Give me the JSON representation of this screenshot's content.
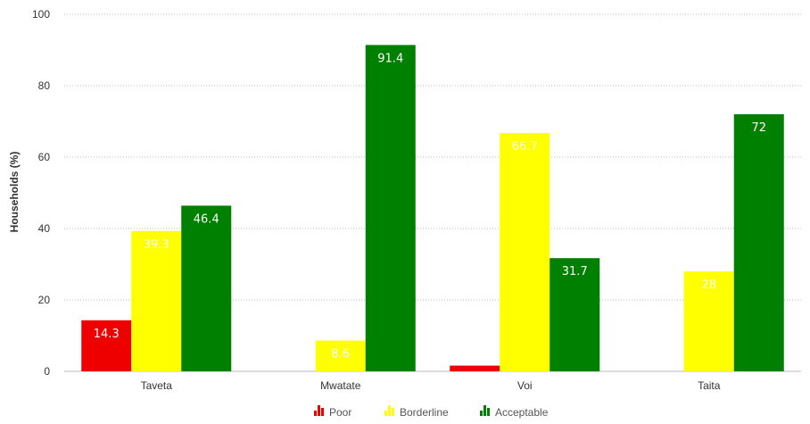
{
  "chart_data": {
    "type": "bar",
    "title": "",
    "xlabel": "",
    "ylabel": "Households (%)",
    "ylim": [
      0,
      100
    ],
    "yticks": [
      0,
      20,
      40,
      60,
      80,
      100
    ],
    "grid": true,
    "legend_position": "bottom",
    "categories": [
      "Taveta",
      "Mwatate",
      "Voi",
      "Taita"
    ],
    "series": [
      {
        "name": "Poor",
        "color": "#ee0000",
        "values": [
          14.3,
          0,
          1.6,
          0
        ],
        "labels": [
          "14.3",
          "",
          "",
          ""
        ]
      },
      {
        "name": "Borderline",
        "color": "#ffff00",
        "values": [
          39.3,
          8.6,
          66.7,
          28
        ],
        "labels": [
          "39.3",
          "8.6",
          "66.7",
          "28"
        ]
      },
      {
        "name": "Acceptable",
        "color": "#008000",
        "values": [
          46.4,
          91.4,
          31.7,
          72
        ],
        "labels": [
          "46.4",
          "91.4",
          "31.7",
          "72"
        ]
      }
    ]
  }
}
